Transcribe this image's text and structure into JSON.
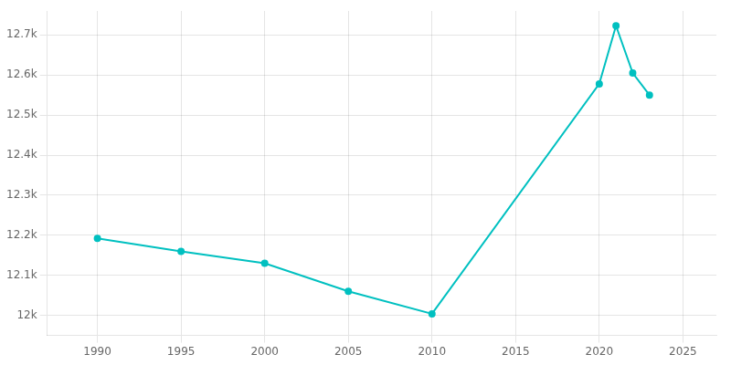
{
  "chart_data": {
    "type": "line",
    "x": [
      1990,
      1995,
      2000,
      2005,
      2010,
      2020,
      2021,
      2022,
      2023
    ],
    "values": [
      12192,
      12160,
      12130,
      12060,
      12004,
      12578,
      12723,
      12605,
      12550
    ],
    "color": "#00c0c0",
    "marker": "circle",
    "xlim": [
      1987,
      2027
    ],
    "xticks": [
      1990,
      1995,
      2000,
      2005,
      2010,
      2015,
      2020,
      2025
    ],
    "ylim": [
      11950,
      12760
    ],
    "yticks": [
      {
        "value": 12000,
        "label": "12k"
      },
      {
        "value": 12100,
        "label": "12.1k"
      },
      {
        "value": 12200,
        "label": "12.2k"
      },
      {
        "value": 12300,
        "label": "12.3k"
      },
      {
        "value": 12400,
        "label": "12.4k"
      },
      {
        "value": 12500,
        "label": "12.5k"
      },
      {
        "value": 12600,
        "label": "12.6k"
      },
      {
        "value": 12700,
        "label": "12.7k"
      }
    ],
    "grid": true
  }
}
